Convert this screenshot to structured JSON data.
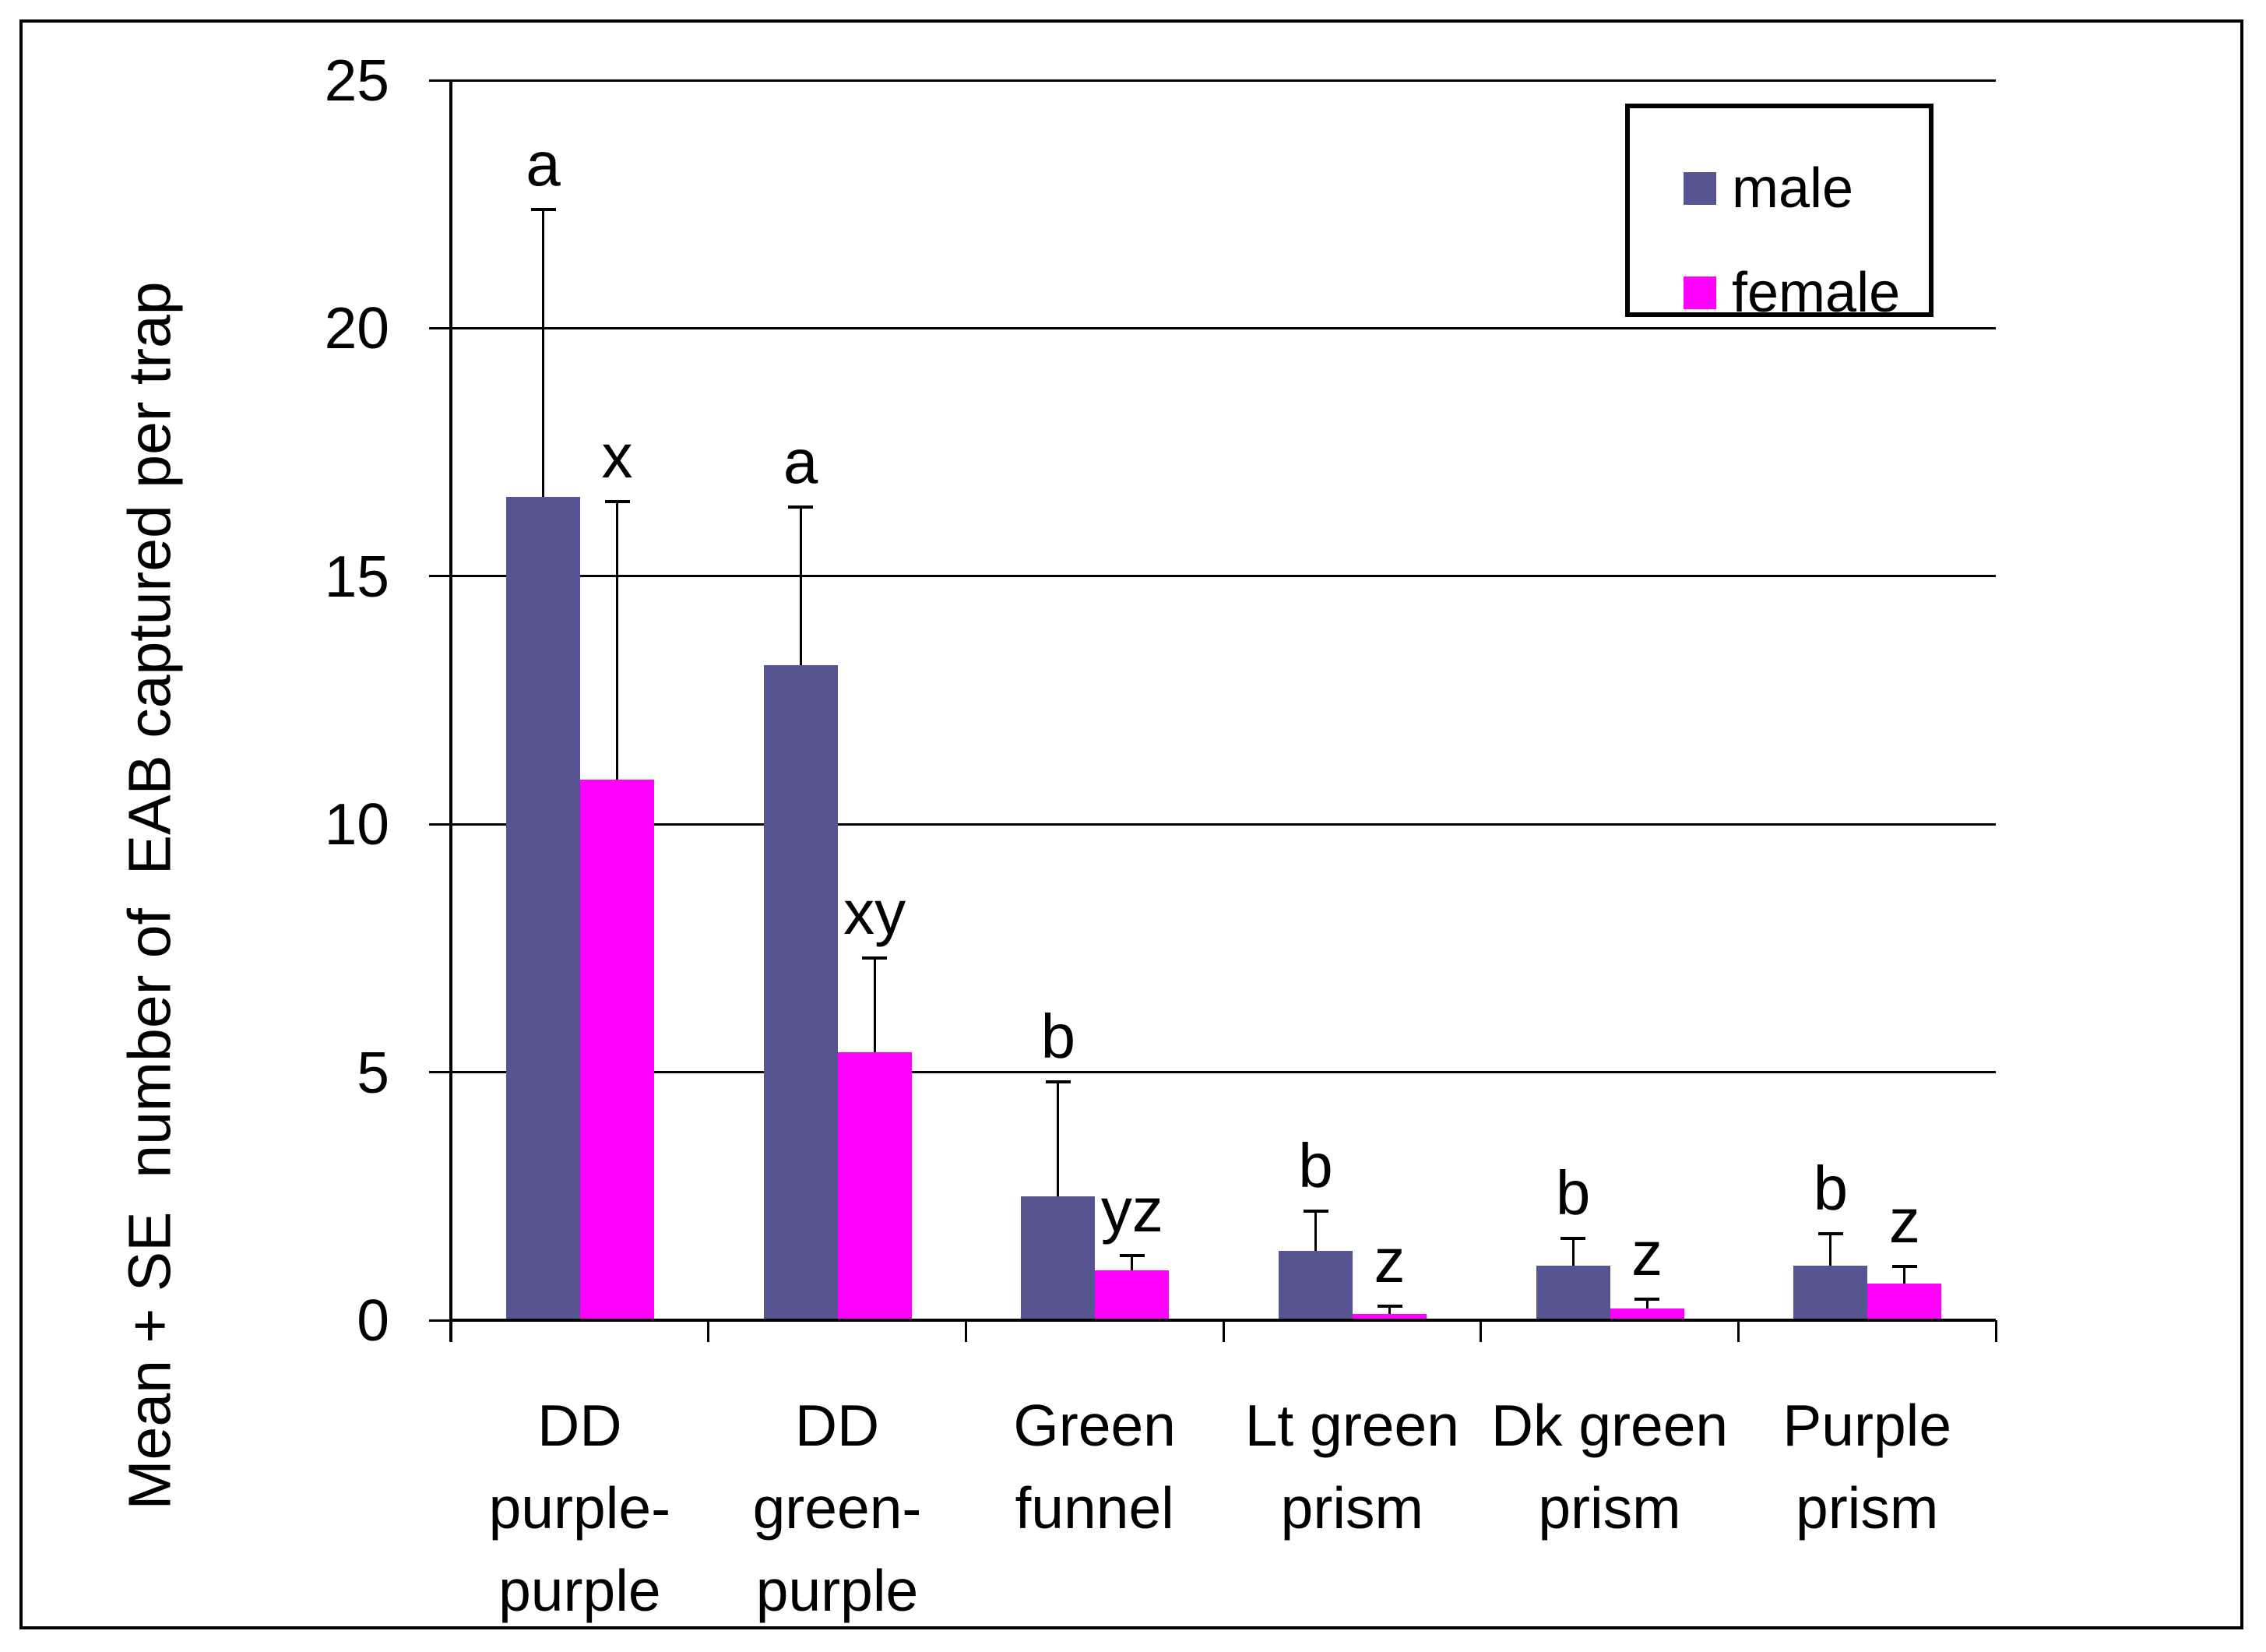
{
  "chart_data": {
    "type": "bar",
    "title": "",
    "xlabel": "",
    "ylabel": "Mean + SE  number of  EAB captured per trap",
    "ylim": [
      0,
      25
    ],
    "yticks": [
      0,
      5,
      10,
      15,
      20,
      25
    ],
    "grid": "horizontal-major",
    "legend_position": "top-right-inside",
    "categories": [
      {
        "label": "DD purple-purple",
        "label_lines": [
          "DD",
          "purple-",
          "purple"
        ]
      },
      {
        "label": "DD green-purple",
        "label_lines": [
          "DD",
          "green-",
          "purple"
        ]
      },
      {
        "label": "Green funnel",
        "label_lines": [
          "Green",
          "funnel"
        ]
      },
      {
        "label": "Lt green prism",
        "label_lines": [
          "Lt green",
          "prism"
        ]
      },
      {
        "label": "Dk green prism",
        "label_lines": [
          "Dk green",
          "prism"
        ]
      },
      {
        "label": "Purple prism",
        "label_lines": [
          "Purple",
          "prism"
        ]
      }
    ],
    "series": [
      {
        "name": "male",
        "color": "#575591",
        "values": [
          16.6,
          13.2,
          2.5,
          1.4,
          1.1,
          1.1
        ],
        "se": [
          5.8,
          3.2,
          2.3,
          0.8,
          0.55,
          0.65
        ],
        "letters": [
          "a",
          "a",
          "b",
          "b",
          "b",
          "b"
        ]
      },
      {
        "name": "female",
        "color": "#FF00FF",
        "values": [
          10.9,
          5.4,
          1.0,
          0.13,
          0.24,
          0.74
        ],
        "se": [
          5.6,
          1.9,
          0.3,
          0.15,
          0.18,
          0.34
        ],
        "letters": [
          "x",
          "xy",
          "yz",
          "z",
          "z",
          "z"
        ]
      }
    ]
  },
  "legend": {
    "items": [
      {
        "label": "male",
        "color": "#575591"
      },
      {
        "label": "female",
        "color": "#FF00FF"
      }
    ]
  }
}
